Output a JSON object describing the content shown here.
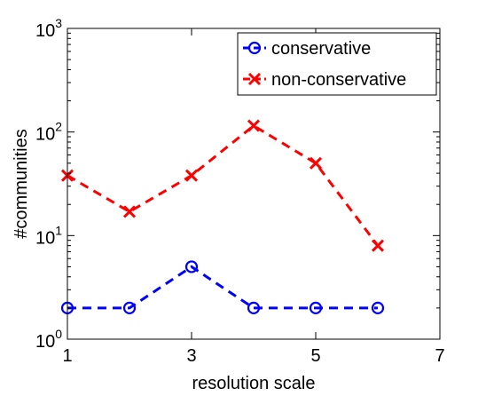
{
  "chart_data": {
    "type": "line",
    "xlabel": "resolution scale",
    "ylabel": "#communities",
    "xlim": [
      1,
      7
    ],
    "ylim": [
      1,
      1000
    ],
    "yscale": "log",
    "xticks": [
      {
        "value": 1,
        "label": "1"
      },
      {
        "value": 3,
        "label": "3"
      },
      {
        "value": 5,
        "label": "5"
      },
      {
        "value": 7,
        "label": "7"
      }
    ],
    "yticks": [
      {
        "value": 1,
        "base": "10",
        "exp": "0"
      },
      {
        "value": 10,
        "base": "10",
        "exp": "1"
      },
      {
        "value": 100,
        "base": "10",
        "exp": "2"
      },
      {
        "value": 1000,
        "base": "10",
        "exp": "3"
      }
    ],
    "grid": false,
    "legend_position": "top-right",
    "series": [
      {
        "name": "conservative",
        "color": "#0000ff",
        "marker": "circle",
        "line_style": "dashed",
        "x": [
          1,
          2,
          3,
          4,
          5,
          6
        ],
        "y": [
          2,
          2,
          5,
          2,
          2,
          2
        ]
      },
      {
        "name": "non-conservative",
        "color": "#ff0000",
        "marker": "x",
        "line_style": "dashed",
        "x": [
          1,
          2,
          3,
          4,
          5,
          6
        ],
        "y": [
          38,
          17,
          38,
          115,
          50,
          8
        ]
      }
    ]
  }
}
